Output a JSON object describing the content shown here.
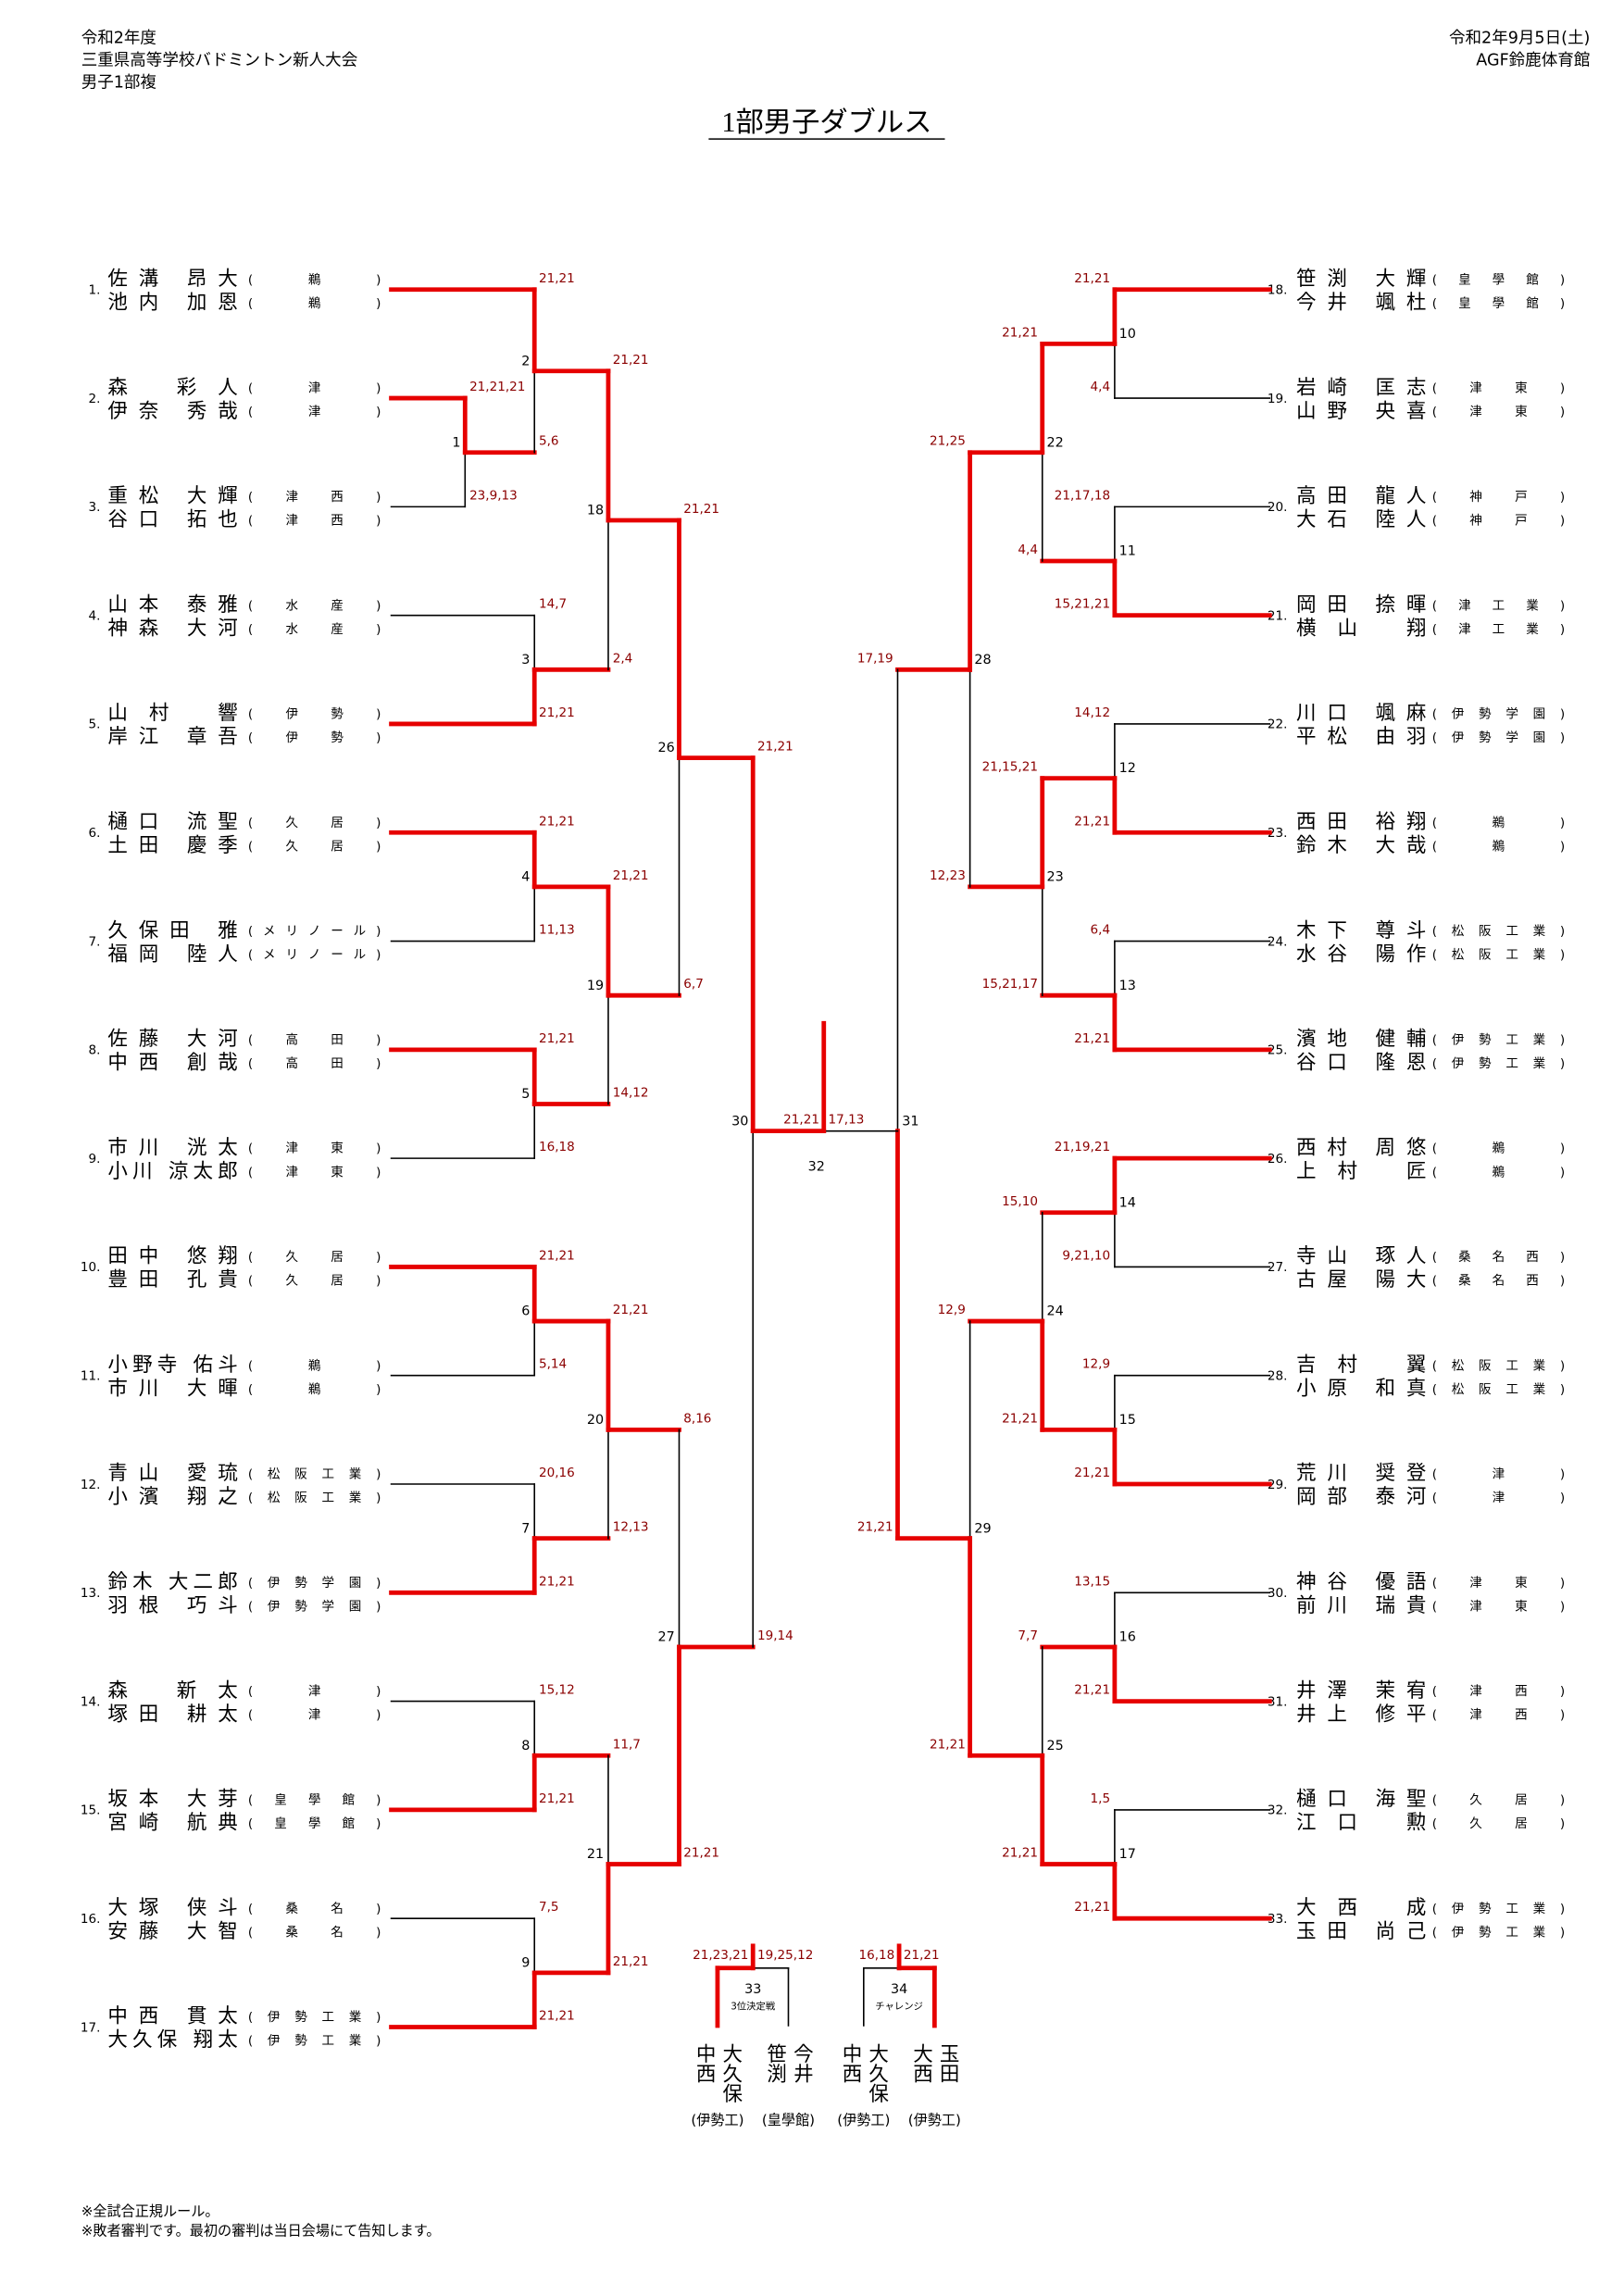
{
  "header": {
    "left": [
      "令和2年度",
      "三重県高等学校バドミントン新人大会",
      "男子1部複"
    ],
    "right": [
      "令和2年9月5日(土)",
      "AGF鈴鹿体育館"
    ],
    "title": "1部男子ダブルス"
  },
  "entries": [
    {
      "seed": "1.",
      "players": [
        {
          "name": "佐溝 昂大",
          "school": "(鵜)"
        },
        {
          "name": "池内 加恩",
          "school": "(鵜)"
        }
      ]
    },
    {
      "seed": "2.",
      "players": [
        {
          "name": "森 彩人",
          "school": "(津)"
        },
        {
          "name": "伊奈 秀哉",
          "school": "(津)"
        }
      ]
    },
    {
      "seed": "3.",
      "players": [
        {
          "name": "重松 大輝",
          "school": "(津西)"
        },
        {
          "name": "谷口 拓也",
          "school": "(津西)"
        }
      ]
    },
    {
      "seed": "4.",
      "players": [
        {
          "name": "山本 泰雅",
          "school": "(水産)"
        },
        {
          "name": "神森 大河",
          "school": "(水産)"
        }
      ]
    },
    {
      "seed": "5.",
      "players": [
        {
          "name": "山村 響",
          "school": "(伊勢)"
        },
        {
          "name": "岸江 章吾",
          "school": "(伊勢)"
        }
      ]
    },
    {
      "seed": "6.",
      "players": [
        {
          "name": "樋口 流聖",
          "school": "(久居)"
        },
        {
          "name": "土田 慶季",
          "school": "(久居)"
        }
      ]
    },
    {
      "seed": "7.",
      "players": [
        {
          "name": "久保田 雅",
          "school": "(メリノール)"
        },
        {
          "name": "福岡 陸人",
          "school": "(メリノール)"
        }
      ]
    },
    {
      "seed": "8.",
      "players": [
        {
          "name": "佐藤 大河",
          "school": "(高田)"
        },
        {
          "name": "中西 創哉",
          "school": "(高田)"
        }
      ]
    },
    {
      "seed": "9.",
      "players": [
        {
          "name": "市川 洸太",
          "school": "(津東)"
        },
        {
          "name": "小川 涼太郎",
          "school": "(津東)"
        }
      ]
    },
    {
      "seed": "10.",
      "players": [
        {
          "name": "田中 悠翔",
          "school": "(久居)"
        },
        {
          "name": "豊田 孔貴",
          "school": "(久居)"
        }
      ]
    },
    {
      "seed": "11.",
      "players": [
        {
          "name": "小野寺 佑斗",
          "school": "(鵜)"
        },
        {
          "name": "市川 大暉",
          "school": "(鵜)"
        }
      ]
    },
    {
      "seed": "12.",
      "players": [
        {
          "name": "青山 愛琉",
          "school": "(松阪工業)"
        },
        {
          "name": "小濱 翔之",
          "school": "(松阪工業)"
        }
      ]
    },
    {
      "seed": "13.",
      "players": [
        {
          "name": "鈴木 大二郎",
          "school": "(伊勢学園)"
        },
        {
          "name": "羽根 巧斗",
          "school": "(伊勢学園)"
        }
      ]
    },
    {
      "seed": "14.",
      "players": [
        {
          "name": "森 新太",
          "school": "(津)"
        },
        {
          "name": "塚田 耕太",
          "school": "(津)"
        }
      ]
    },
    {
      "seed": "15.",
      "players": [
        {
          "name": "坂本 大芽",
          "school": "(皇學館)"
        },
        {
          "name": "宮崎 航典",
          "school": "(皇學館)"
        }
      ]
    },
    {
      "seed": "16.",
      "players": [
        {
          "name": "大塚 侠斗",
          "school": "(桑名)"
        },
        {
          "name": "安藤 大智",
          "school": "(桑名)"
        }
      ]
    },
    {
      "seed": "17.",
      "players": [
        {
          "name": "中西 貫太",
          "school": "(伊勢工業)"
        },
        {
          "name": "大久保 翔太",
          "school": "(伊勢工業)"
        }
      ]
    },
    {
      "seed": "18.",
      "players": [
        {
          "name": "笹渕 大輝",
          "school": "(皇學館)"
        },
        {
          "name": "今井 颯杜",
          "school": "(皇學館)"
        }
      ]
    },
    {
      "seed": "19.",
      "players": [
        {
          "name": "岩崎 匡志",
          "school": "(津東)"
        },
        {
          "name": "山野 央喜",
          "school": "(津東)"
        }
      ]
    },
    {
      "seed": "20.",
      "players": [
        {
          "name": "高田 龍人",
          "school": "(神戸)"
        },
        {
          "name": "大石 陸人",
          "school": "(神戸)"
        }
      ]
    },
    {
      "seed": "21.",
      "players": [
        {
          "name": "岡田 捺暉",
          "school": "(津工業)"
        },
        {
          "name": "横山 翔",
          "school": "(津工業)"
        }
      ]
    },
    {
      "seed": "22.",
      "players": [
        {
          "name": "川口 颯麻",
          "school": "(伊勢学園)"
        },
        {
          "name": "平松 由羽",
          "school": "(伊勢学園)"
        }
      ]
    },
    {
      "seed": "23.",
      "players": [
        {
          "name": "西田 裕翔",
          "school": "(鵜)"
        },
        {
          "name": "鈴木 大哉",
          "school": "(鵜)"
        }
      ]
    },
    {
      "seed": "24.",
      "players": [
        {
          "name": "木下 尊斗",
          "school": "(松阪工業)"
        },
        {
          "name": "水谷 陽作",
          "school": "(松阪工業)"
        }
      ]
    },
    {
      "seed": "25.",
      "players": [
        {
          "name": "濱地 健輔",
          "school": "(伊勢工業)"
        },
        {
          "name": "谷口 隆恩",
          "school": "(伊勢工業)"
        }
      ]
    },
    {
      "seed": "26.",
      "players": [
        {
          "name": "西村 周悠",
          "school": "(鵜)"
        },
        {
          "name": "上村 匠",
          "school": "(鵜)"
        }
      ]
    },
    {
      "seed": "27.",
      "players": [
        {
          "name": "寺山 琢人",
          "school": "(桑名西)"
        },
        {
          "name": "古屋 陽大",
          "school": "(桑名西)"
        }
      ]
    },
    {
      "seed": "28.",
      "players": [
        {
          "name": "吉村 翼",
          "school": "(松阪工業)"
        },
        {
          "name": "小原 和真",
          "school": "(松阪工業)"
        }
      ]
    },
    {
      "seed": "29.",
      "players": [
        {
          "name": "荒川 奨登",
          "school": "(津)"
        },
        {
          "name": "岡部 泰河",
          "school": "(津)"
        }
      ]
    },
    {
      "seed": "30.",
      "players": [
        {
          "name": "神谷 優語",
          "school": "(津東)"
        },
        {
          "name": "前川 瑞貴",
          "school": "(津東)"
        }
      ]
    },
    {
      "seed": "31.",
      "players": [
        {
          "name": "井澤 茉宥",
          "school": "(津西)"
        },
        {
          "name": "井上 修平",
          "school": "(津西)"
        }
      ]
    },
    {
      "seed": "32.",
      "players": [
        {
          "name": "樋口 海聖",
          "school": "(久居)"
        },
        {
          "name": "江口 勲",
          "school": "(久居)"
        }
      ]
    },
    {
      "seed": "33.",
      "players": [
        {
          "name": "大西 成",
          "school": "(伊勢工業)"
        },
        {
          "name": "玉田 尚己",
          "school": "(伊勢工業)"
        }
      ]
    }
  ],
  "matches": [
    {
      "no": "1",
      "scores": [
        "21,21,21",
        "23,9,13"
      ]
    },
    {
      "no": "2",
      "scores": [
        "21,21",
        "5,6"
      ]
    },
    {
      "no": "3",
      "scores": [
        "14,7",
        "21,21"
      ]
    },
    {
      "no": "4",
      "scores": [
        "21,21",
        "11,13"
      ]
    },
    {
      "no": "5",
      "scores": [
        "21,21",
        "16,18"
      ]
    },
    {
      "no": "6",
      "scores": [
        "21,21",
        "5,14"
      ]
    },
    {
      "no": "7",
      "scores": [
        "20,16",
        "21,21"
      ]
    },
    {
      "no": "8",
      "scores": [
        "15,12",
        "21,21"
      ]
    },
    {
      "no": "9",
      "scores": [
        "7,5",
        "21,21"
      ]
    },
    {
      "no": "10",
      "scores": [
        "21,21",
        "4,4"
      ]
    },
    {
      "no": "11",
      "scores": [
        "21,17,18",
        "15,21,21"
      ]
    },
    {
      "no": "12",
      "scores": [
        "14,12",
        "21,21"
      ]
    },
    {
      "no": "13",
      "scores": [
        "6,4",
        "21,21"
      ]
    },
    {
      "no": "14",
      "scores": [
        "21,19,21",
        "9,21,10"
      ]
    },
    {
      "no": "15",
      "scores": [
        "12,9",
        "21,21"
      ]
    },
    {
      "no": "16",
      "scores": [
        "13,15",
        "21,21"
      ]
    },
    {
      "no": "17",
      "scores": [
        "1,5",
        "21,21"
      ]
    },
    {
      "no": "18",
      "scores": [
        "21,21",
        "2,4"
      ]
    },
    {
      "no": "19",
      "scores": [
        "21,21",
        "14,12"
      ]
    },
    {
      "no": "20",
      "scores": [
        "21,21",
        "12,13"
      ]
    },
    {
      "no": "21",
      "scores": [
        "11,7",
        "21,21"
      ]
    },
    {
      "no": "22",
      "scores": [
        "21,21",
        "4,4"
      ]
    },
    {
      "no": "23",
      "scores": [
        "21,15,21",
        "15,21,17"
      ]
    },
    {
      "no": "24",
      "scores": [
        "15,10",
        "21,21"
      ]
    },
    {
      "no": "25",
      "scores": [
        "7,7",
        "21,21"
      ]
    },
    {
      "no": "26",
      "scores": [
        "21,21",
        "6,7"
      ]
    },
    {
      "no": "27",
      "scores": [
        "8,16",
        "21,21"
      ]
    },
    {
      "no": "28",
      "scores": [
        "21,25",
        "12,23"
      ]
    },
    {
      "no": "29",
      "scores": [
        "12,9",
        "21,21"
      ]
    },
    {
      "no": "30",
      "scores": [
        "21,21",
        "19,14"
      ]
    },
    {
      "no": "31",
      "scores": [
        "17,19",
        "21,21"
      ]
    },
    {
      "no": "32",
      "scores": [
        "21,21",
        "17,13"
      ]
    }
  ],
  "playoffs": [
    {
      "no": "33",
      "label": "3位決定戦",
      "scores": [
        "21,23,21",
        "19,25,12"
      ],
      "pairs": [
        {
          "players": [
            "中西",
            "大久保"
          ],
          "school": "(伊勢工)"
        },
        {
          "players": [
            "笹渕",
            "今井"
          ],
          "school": "(皇學館)"
        }
      ]
    },
    {
      "no": "34",
      "label": "チャレンジ",
      "scores": [
        "16,18",
        "21,21"
      ],
      "pairs": [
        {
          "players": [
            "中西",
            "大久保"
          ],
          "school": "(伊勢工)"
        },
        {
          "players": [
            "大西",
            "玉田"
          ],
          "school": "(伊勢工)"
        }
      ]
    }
  ],
  "notes": [
    "※全試合正規ルール。",
    "※敗者審判です。最初の審判は当日会場にて告知します。"
  ]
}
